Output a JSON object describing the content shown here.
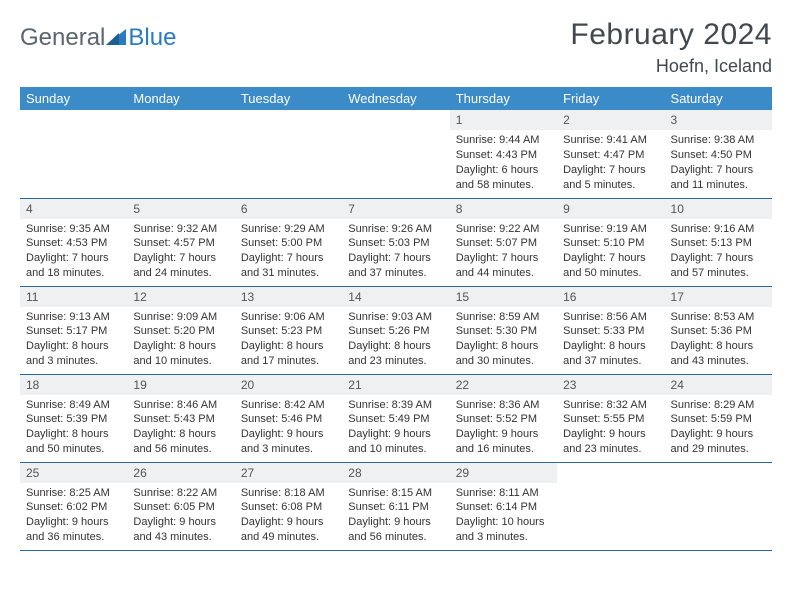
{
  "brand": {
    "part1": "General",
    "part2": "Blue"
  },
  "title": "February 2024",
  "location": "Hoefn, Iceland",
  "colors": {
    "header_bg": "#3b8bc9",
    "daynum_bg": "#eef0f2",
    "row_border": "#2a6aa0",
    "text": "#333333",
    "title_text": "#404850",
    "logo_gray": "#5a6570",
    "logo_blue": "#2a7bbf"
  },
  "weekdays": [
    "Sunday",
    "Monday",
    "Tuesday",
    "Wednesday",
    "Thursday",
    "Friday",
    "Saturday"
  ],
  "grid": [
    [
      null,
      null,
      null,
      null,
      {
        "n": "1",
        "sunrise": "9:44 AM",
        "sunset": "4:43 PM",
        "daylight": "6 hours and 58 minutes."
      },
      {
        "n": "2",
        "sunrise": "9:41 AM",
        "sunset": "4:47 PM",
        "daylight": "7 hours and 5 minutes."
      },
      {
        "n": "3",
        "sunrise": "9:38 AM",
        "sunset": "4:50 PM",
        "daylight": "7 hours and 11 minutes."
      }
    ],
    [
      {
        "n": "4",
        "sunrise": "9:35 AM",
        "sunset": "4:53 PM",
        "daylight": "7 hours and 18 minutes."
      },
      {
        "n": "5",
        "sunrise": "9:32 AM",
        "sunset": "4:57 PM",
        "daylight": "7 hours and 24 minutes."
      },
      {
        "n": "6",
        "sunrise": "9:29 AM",
        "sunset": "5:00 PM",
        "daylight": "7 hours and 31 minutes."
      },
      {
        "n": "7",
        "sunrise": "9:26 AM",
        "sunset": "5:03 PM",
        "daylight": "7 hours and 37 minutes."
      },
      {
        "n": "8",
        "sunrise": "9:22 AM",
        "sunset": "5:07 PM",
        "daylight": "7 hours and 44 minutes."
      },
      {
        "n": "9",
        "sunrise": "9:19 AM",
        "sunset": "5:10 PM",
        "daylight": "7 hours and 50 minutes."
      },
      {
        "n": "10",
        "sunrise": "9:16 AM",
        "sunset": "5:13 PM",
        "daylight": "7 hours and 57 minutes."
      }
    ],
    [
      {
        "n": "11",
        "sunrise": "9:13 AM",
        "sunset": "5:17 PM",
        "daylight": "8 hours and 3 minutes."
      },
      {
        "n": "12",
        "sunrise": "9:09 AM",
        "sunset": "5:20 PM",
        "daylight": "8 hours and 10 minutes."
      },
      {
        "n": "13",
        "sunrise": "9:06 AM",
        "sunset": "5:23 PM",
        "daylight": "8 hours and 17 minutes."
      },
      {
        "n": "14",
        "sunrise": "9:03 AM",
        "sunset": "5:26 PM",
        "daylight": "8 hours and 23 minutes."
      },
      {
        "n": "15",
        "sunrise": "8:59 AM",
        "sunset": "5:30 PM",
        "daylight": "8 hours and 30 minutes."
      },
      {
        "n": "16",
        "sunrise": "8:56 AM",
        "sunset": "5:33 PM",
        "daylight": "8 hours and 37 minutes."
      },
      {
        "n": "17",
        "sunrise": "8:53 AM",
        "sunset": "5:36 PM",
        "daylight": "8 hours and 43 minutes."
      }
    ],
    [
      {
        "n": "18",
        "sunrise": "8:49 AM",
        "sunset": "5:39 PM",
        "daylight": "8 hours and 50 minutes."
      },
      {
        "n": "19",
        "sunrise": "8:46 AM",
        "sunset": "5:43 PM",
        "daylight": "8 hours and 56 minutes."
      },
      {
        "n": "20",
        "sunrise": "8:42 AM",
        "sunset": "5:46 PM",
        "daylight": "9 hours and 3 minutes."
      },
      {
        "n": "21",
        "sunrise": "8:39 AM",
        "sunset": "5:49 PM",
        "daylight": "9 hours and 10 minutes."
      },
      {
        "n": "22",
        "sunrise": "8:36 AM",
        "sunset": "5:52 PM",
        "daylight": "9 hours and 16 minutes."
      },
      {
        "n": "23",
        "sunrise": "8:32 AM",
        "sunset": "5:55 PM",
        "daylight": "9 hours and 23 minutes."
      },
      {
        "n": "24",
        "sunrise": "8:29 AM",
        "sunset": "5:59 PM",
        "daylight": "9 hours and 29 minutes."
      }
    ],
    [
      {
        "n": "25",
        "sunrise": "8:25 AM",
        "sunset": "6:02 PM",
        "daylight": "9 hours and 36 minutes."
      },
      {
        "n": "26",
        "sunrise": "8:22 AM",
        "sunset": "6:05 PM",
        "daylight": "9 hours and 43 minutes."
      },
      {
        "n": "27",
        "sunrise": "8:18 AM",
        "sunset": "6:08 PM",
        "daylight": "9 hours and 49 minutes."
      },
      {
        "n": "28",
        "sunrise": "8:15 AM",
        "sunset": "6:11 PM",
        "daylight": "9 hours and 56 minutes."
      },
      {
        "n": "29",
        "sunrise": "8:11 AM",
        "sunset": "6:14 PM",
        "daylight": "10 hours and 3 minutes."
      },
      null,
      null
    ]
  ],
  "labels": {
    "sunrise_prefix": "Sunrise: ",
    "sunset_prefix": "Sunset: ",
    "daylight_prefix": "Daylight: "
  }
}
